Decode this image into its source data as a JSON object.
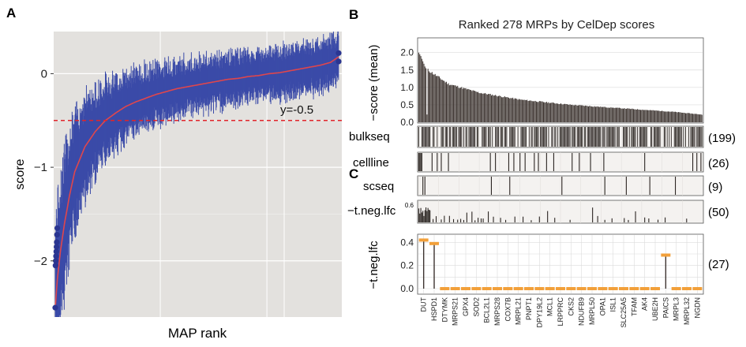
{
  "panelA": {
    "label": "A",
    "chart_data": {
      "type": "scatter",
      "xlabel": "MAP rank",
      "ylabel": "score",
      "threshold": -0.5,
      "threshold_label": "y=-0.5",
      "ylim": [
        -2.6,
        0.45
      ],
      "yticks": [
        {
          "v": 0,
          "label": "0"
        },
        {
          "v": -1,
          "label": "−1"
        },
        {
          "v": -2,
          "label": "−2"
        }
      ],
      "x": [
        1,
        3,
        6,
        10,
        15,
        20,
        30,
        40,
        50,
        60,
        70,
        80,
        90,
        100,
        110,
        120,
        130,
        140,
        150,
        160,
        170,
        180,
        190,
        200,
        210,
        220,
        230,
        240,
        250,
        260,
        270,
        278
      ],
      "mean_score": [
        -2.5,
        -2.2,
        -1.9,
        -1.6,
        -1.3,
        -1.05,
        -0.78,
        -0.62,
        -0.5,
        -0.42,
        -0.35,
        -0.3,
        -0.26,
        -0.22,
        -0.19,
        -0.16,
        -0.14,
        -0.12,
        -0.1,
        -0.08,
        -0.06,
        -0.05,
        -0.03,
        -0.02,
        0.0,
        0.01,
        0.03,
        0.05,
        0.07,
        0.09,
        0.12,
        0.18
      ]
    }
  },
  "panelB": {
    "label": "B",
    "title": "Ranked 278 MRPs by CelDep scores",
    "chart_data": {
      "type": "bar",
      "ylabel": "−score (mean)",
      "ylim": [
        0,
        2.4
      ],
      "yticks": [
        "0.0",
        "0.5",
        "1.0",
        "1.5",
        "2.0"
      ],
      "n": 278,
      "values_top": [
        2.0,
        1.95,
        1.9,
        1.82,
        1.75,
        1.68,
        1.6,
        1.55
      ],
      "values_knots": [
        {
          "r": 10,
          "v": 1.5
        },
        {
          "r": 30,
          "v": 1.1
        },
        {
          "r": 60,
          "v": 0.85
        },
        {
          "r": 100,
          "v": 0.65
        },
        {
          "r": 150,
          "v": 0.5
        },
        {
          "r": 200,
          "v": 0.4
        },
        {
          "r": 250,
          "v": 0.3
        },
        {
          "r": 278,
          "v": 0.22
        }
      ]
    },
    "tracks": [
      {
        "label": "bulkseq",
        "count": "(199)"
      },
      {
        "label": "cellline",
        "count": "(26)"
      },
      {
        "label": "scseq",
        "count": "(9)"
      },
      {
        "label": "−t.neg.lfc",
        "count": "(50)",
        "tick": "0.6"
      }
    ]
  },
  "panelC": {
    "label": "C",
    "count": "(27)",
    "chart_data": {
      "type": "bar",
      "ylabel": "−t.neg.lfc",
      "ylim": [
        0,
        0.45
      ],
      "yticks": [
        "0.0",
        "0.2",
        "0.4"
      ],
      "categories": [
        "DUT",
        "HSPD1",
        "DTYMK",
        "MRPS21",
        "GPX4",
        "SOD2",
        "BCL2L1",
        "MRPS28",
        "COX7B",
        "MRPL21",
        "PNPT1",
        "DPY19L2",
        "MCL1",
        "LRPPRC",
        "CKS2",
        "NDUFB9",
        "MRPL50",
        "OPA1",
        "ISL1",
        "SLC25A5",
        "TFAM",
        "AK4",
        "UBE2H",
        "PAICS",
        "MRPL3",
        "MRPL32",
        "NGDN"
      ],
      "values": [
        0.42,
        0.39,
        0,
        0,
        0,
        0,
        0,
        0,
        0,
        0,
        0,
        0,
        0,
        0,
        0,
        0,
        0,
        0,
        0,
        0,
        0,
        0,
        0,
        0.29,
        0,
        0,
        0
      ]
    }
  },
  "colors": {
    "panel_bg": "#e3e1de",
    "errorbar": "#3b4ba8",
    "point": "#2a3591",
    "fit": "#e0464c",
    "threshold": "#e0252b",
    "bar": "#3d3430",
    "track_line": "#2b2522",
    "orange": "#f2a03a",
    "grid": "#dcdcdc"
  }
}
